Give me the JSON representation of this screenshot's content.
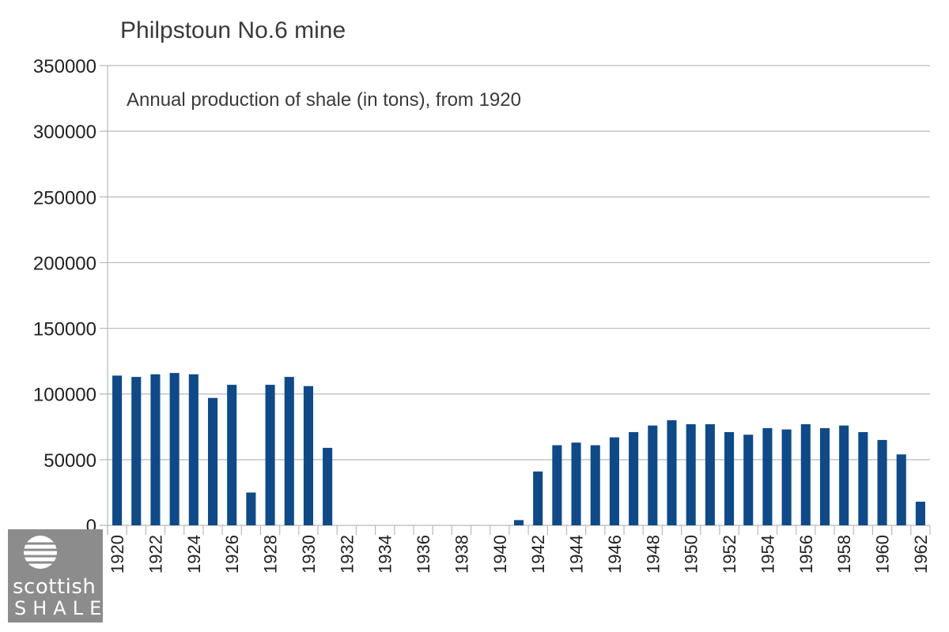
{
  "chart_data": {
    "type": "bar",
    "title": "Philpstoun No.6 mine",
    "subtitle": "Annual production of shale (in tons), from 1920",
    "xlabel": "",
    "ylabel": "",
    "ylim": [
      0,
      350000
    ],
    "yticks": [
      "0",
      "50000",
      "100000",
      "150000",
      "200000",
      "250000",
      "300000",
      "350000"
    ],
    "categories": [
      "1920",
      "1921",
      "1922",
      "1923",
      "1924",
      "1925",
      "1926",
      "1927",
      "1928",
      "1929",
      "1930",
      "1931",
      "1932",
      "1933",
      "1934",
      "1935",
      "1936",
      "1937",
      "1938",
      "1939",
      "1940",
      "1941",
      "1942",
      "1943",
      "1944",
      "1945",
      "1946",
      "1947",
      "1948",
      "1949",
      "1950",
      "1951",
      "1952",
      "1953",
      "1954",
      "1955",
      "1956",
      "1957",
      "1958",
      "1959",
      "1960",
      "1961",
      "1962"
    ],
    "xtick_labels": [
      "1920",
      "1922",
      "1924",
      "1926",
      "1928",
      "1930",
      "1932",
      "1934",
      "1936",
      "1938",
      "1940",
      "1942",
      "1944",
      "1946",
      "1948",
      "1950",
      "1952",
      "1954",
      "1956",
      "1958",
      "1960",
      "1962"
    ],
    "values": [
      114000,
      113000,
      115000,
      116000,
      115000,
      97000,
      107000,
      25000,
      107000,
      113000,
      106000,
      59000,
      0,
      0,
      0,
      0,
      0,
      0,
      0,
      0,
      0,
      4000,
      41000,
      61000,
      63000,
      61000,
      67000,
      71000,
      76000,
      80000,
      77000,
      77000,
      71000,
      69000,
      74000,
      73000,
      77000,
      74000,
      76000,
      71000,
      65000,
      54000,
      18000
    ],
    "bar_color": "#0e4a8a",
    "grid": true,
    "legend": "none"
  },
  "logo": {
    "line1": "scottish",
    "line2": "SHALE"
  }
}
